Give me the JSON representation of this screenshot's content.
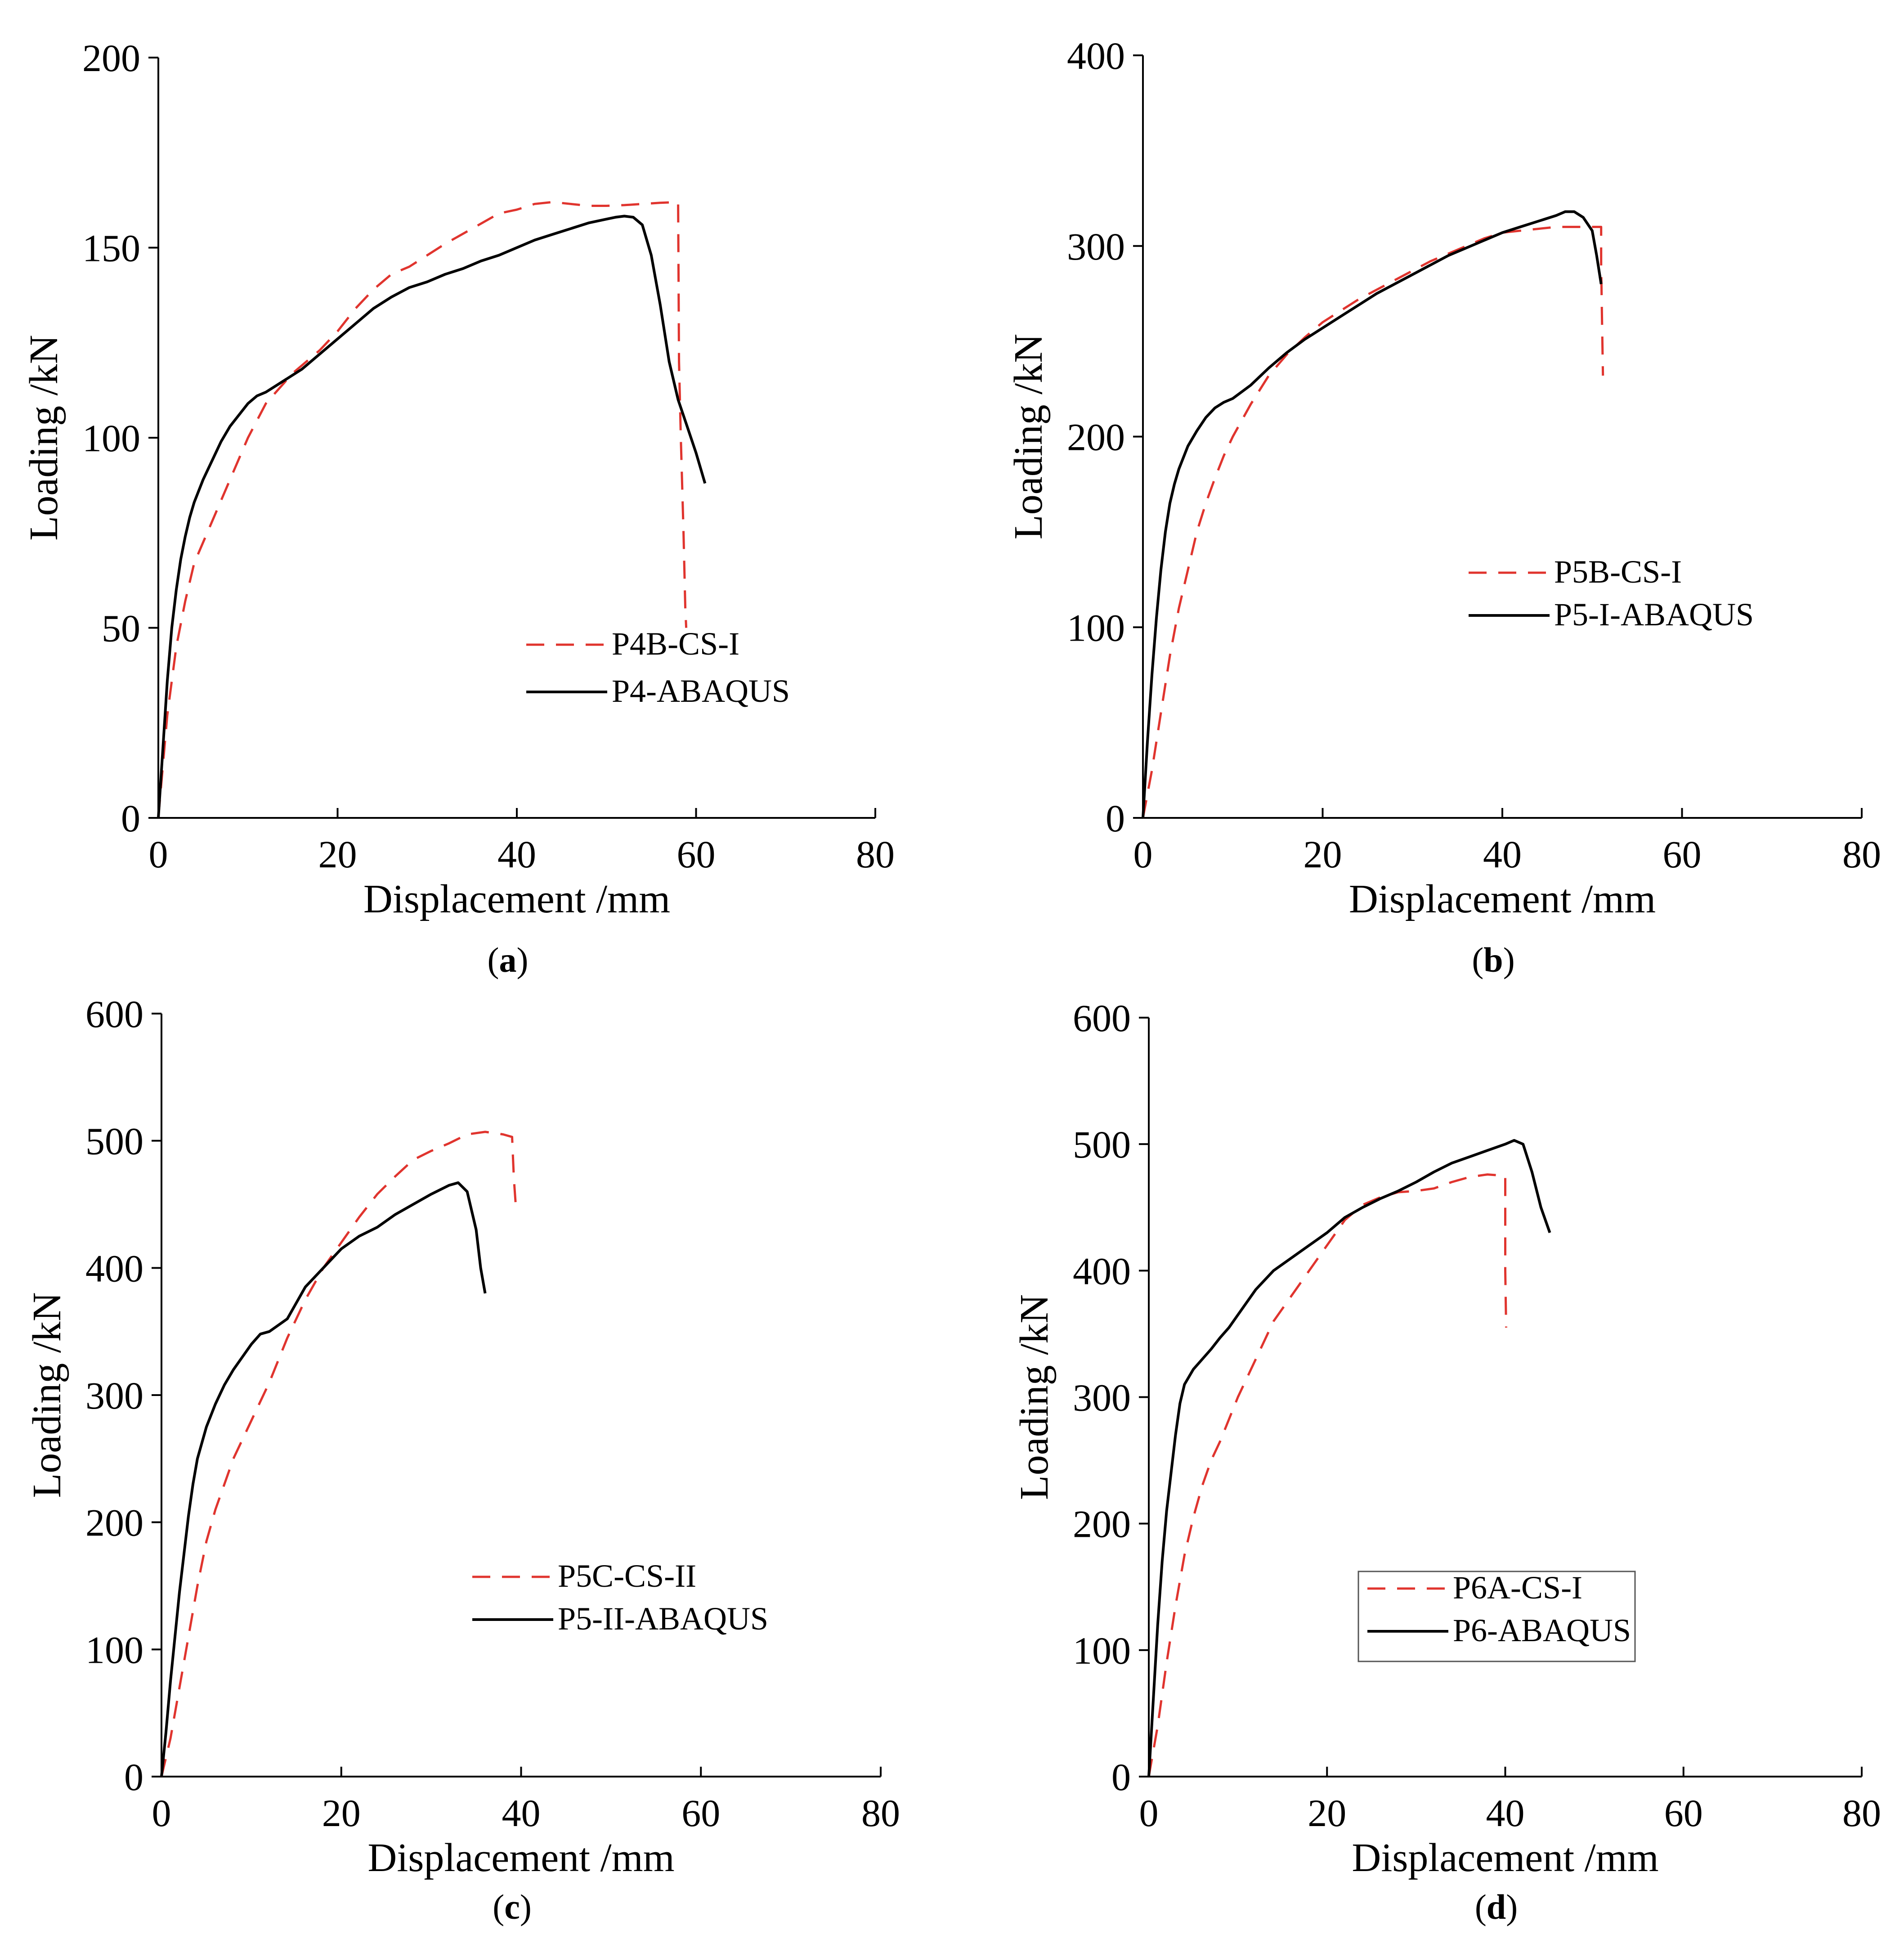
{
  "figure": {
    "colors": {
      "experiment": "#e0342e",
      "simulation": "#000000",
      "axis": "#000000"
    },
    "chart_data": [
      {
        "id": "a",
        "type": "line",
        "caption": "a",
        "xlabel": "Displacement /mm",
        "ylabel": "Loading /kN",
        "xlim": [
          0,
          80
        ],
        "ylim": [
          0,
          200
        ],
        "xticks": [
          0,
          20,
          40,
          60,
          80
        ],
        "yticks": [
          0,
          50,
          100,
          150,
          200
        ],
        "legend_position": "center-right",
        "legend_box": false,
        "series": [
          {
            "name": "P4B-CS-I",
            "style": "dashed",
            "color": "#e0342e",
            "x": [
              0,
              1,
              2,
              3,
              4,
              6,
              8,
              10,
              12,
              15,
              18,
              20,
              22,
              24,
              26,
              28,
              30,
              32,
              35,
              38,
              40,
              42,
              44,
              46,
              48,
              50,
              52,
              54,
              56,
              58,
              58,
              58.1,
              58.3,
              58.6,
              58.8,
              58.9
            ],
            "y": [
              0,
              27,
              45,
              57,
              67,
              78,
              89,
              100,
              109,
              117,
              123,
              128,
              134,
              139,
              143,
              145,
              148,
              151,
              155,
              159,
              160,
              161.5,
              162,
              161.5,
              161,
              161,
              161.2,
              161.5,
              161.8,
              162,
              162,
              120,
              100,
              75,
              55,
              50
            ]
          },
          {
            "name": "P4-ABAQUS",
            "style": "solid",
            "color": "#000000",
            "x": [
              0,
              0.5,
              1,
              1.5,
              2,
              2.5,
              3,
              3.5,
              4,
              5,
              6,
              7,
              8,
              9,
              10,
              11,
              12,
              14,
              16,
              18,
              20,
              22,
              24,
              26,
              28,
              30,
              32,
              34,
              36,
              38,
              40,
              42,
              44,
              46,
              48,
              50,
              51,
              52,
              53,
              54,
              55,
              56,
              57,
              58,
              59,
              60,
              61
            ],
            "y": [
              0,
              18,
              36,
              50,
              60,
              68,
              74,
              79,
              83,
              89,
              94,
              99,
              103,
              106,
              109,
              111,
              112,
              115,
              118,
              122,
              126,
              130,
              134,
              137,
              139.5,
              141,
              143,
              144.5,
              146.5,
              148,
              150,
              152,
              153.5,
              155,
              156.5,
              157.5,
              158,
              158.3,
              158,
              156,
              148,
              135,
              120,
              110,
              103,
              96,
              88
            ]
          }
        ]
      },
      {
        "id": "b",
        "type": "line",
        "caption": "b",
        "xlabel": "Displacement /mm",
        "ylabel": "Loading /kN",
        "xlim": [
          0,
          80
        ],
        "ylim": [
          0,
          400
        ],
        "xticks": [
          0,
          20,
          40,
          60,
          80
        ],
        "yticks": [
          0,
          100,
          200,
          300,
          400
        ],
        "legend_position": "center-right",
        "legend_box": false,
        "series": [
          {
            "name": "P5B-CS-I",
            "style": "dashed",
            "color": "#e0342e",
            "x": [
              0,
              1,
              2,
              3,
              4,
              5,
              6,
              7,
              8,
              9,
              10,
              12,
              14,
              16,
              18,
              20,
              22,
              24,
              26,
              28,
              30,
              32,
              34,
              36,
              38,
              40,
              42,
              44,
              46,
              48,
              50,
              51,
              51,
              51.1,
              51.2
            ],
            "y": [
              0,
              25,
              55,
              85,
              110,
              130,
              150,
              165,
              178,
              190,
              200,
              217,
              232,
              243,
              252,
              260,
              266,
              272,
              277,
              282,
              287,
              292,
              296,
              300,
              304,
              307,
              308,
              309,
              310,
              310,
              310,
              310,
              290,
              260,
              232
            ]
          },
          {
            "name": "P5-I-ABAQUS",
            "style": "solid",
            "color": "#000000",
            "x": [
              0,
              0.5,
              1,
              1.5,
              2,
              2.5,
              3,
              3.5,
              4,
              5,
              6,
              7,
              8,
              9,
              10,
              12,
              14,
              16,
              18,
              20,
              22,
              24,
              26,
              28,
              30,
              32,
              34,
              36,
              38,
              40,
              42,
              44,
              46,
              47,
              48,
              49,
              50,
              50.5,
              51
            ],
            "y": [
              0,
              40,
              75,
              105,
              130,
              150,
              165,
              175,
              183,
              195,
              203,
              210,
              215,
              218,
              220,
              227,
              236,
              244,
              251,
              257,
              263,
              269,
              275,
              280,
              285,
              290,
              295,
              299,
              303,
              307,
              310,
              313,
              316,
              318,
              318,
              315,
              308,
              295,
              280
            ]
          }
        ]
      },
      {
        "id": "c",
        "type": "line",
        "caption": "c",
        "xlabel": "Displacement /mm",
        "ylabel": "Loading /kN",
        "xlim": [
          0,
          80
        ],
        "ylim": [
          0,
          600
        ],
        "xticks": [
          0,
          20,
          40,
          60,
          80
        ],
        "yticks": [
          0,
          100,
          200,
          300,
          400,
          500,
          600
        ],
        "legend_position": "center-right",
        "legend_box": false,
        "series": [
          {
            "name": "P5C-CS-II",
            "style": "dashed",
            "color": "#e0342e",
            "x": [
              0,
              1,
              2,
              3,
              4,
              5,
              6,
              7,
              8,
              10,
              12,
              14,
              16,
              18,
              20,
              22,
              24,
              26,
              28,
              30,
              32,
              34,
              36,
              38,
              39,
              39.2,
              39.4
            ],
            "y": [
              0,
              30,
              70,
              110,
              150,
              185,
              210,
              230,
              250,
              280,
              310,
              345,
              375,
              400,
              420,
              440,
              458,
              472,
              485,
              492,
              498,
              505,
              507,
              505,
              503,
              470,
              450
            ]
          },
          {
            "name": "P5-II-ABAQUS",
            "style": "solid",
            "color": "#000000",
            "x": [
              0,
              0.5,
              1,
              1.5,
              2,
              2.5,
              3,
              3.5,
              4,
              5,
              6,
              7,
              8,
              9,
              10,
              11,
              12,
              14,
              16,
              18,
              20,
              22,
              24,
              26,
              28,
              30,
              32,
              33,
              34,
              35,
              35.5,
              36
            ],
            "y": [
              0,
              35,
              75,
              110,
              145,
              175,
              205,
              230,
              250,
              275,
              293,
              308,
              320,
              330,
              340,
              348,
              350,
              360,
              385,
              400,
              415,
              425,
              432,
              442,
              450,
              458,
              465,
              467,
              460,
              430,
              400,
              380
            ]
          }
        ]
      },
      {
        "id": "d",
        "type": "line",
        "caption": "d",
        "xlabel": "Displacement /mm",
        "ylabel": "Loading /kN",
        "xlim": [
          0,
          80
        ],
        "ylim": [
          0,
          600
        ],
        "xticks": [
          0,
          20,
          40,
          60,
          80
        ],
        "yticks": [
          0,
          100,
          200,
          300,
          400,
          500,
          600
        ],
        "legend_position": "center-right",
        "legend_box": true,
        "series": [
          {
            "name": "P6A-CS-I",
            "style": "dashed",
            "color": "#e0342e",
            "x": [
              0,
              1,
              2,
              3,
              4,
              5,
              6,
              7,
              8,
              10,
              12,
              14,
              16,
              18,
              20,
              22,
              24,
              26,
              28,
              30,
              32,
              34,
              36,
              38,
              40,
              40,
              40.1
            ],
            "y": [
              0,
              40,
              90,
              135,
              175,
              205,
              230,
              250,
              265,
              300,
              330,
              360,
              380,
              400,
              420,
              440,
              452,
              458,
              462,
              463,
              465,
              470,
              474,
              476,
              475,
              400,
              355
            ]
          },
          {
            "name": "P6-ABAQUS",
            "style": "solid",
            "color": "#000000",
            "x": [
              0,
              0.5,
              1,
              1.5,
              2,
              2.5,
              3,
              3.5,
              4,
              5,
              6,
              7,
              8,
              9,
              10,
              12,
              14,
              16,
              18,
              20,
              22,
              24,
              26,
              28,
              30,
              32,
              34,
              36,
              38,
              40,
              41,
              42,
              43,
              44,
              45
            ],
            "y": [
              0,
              60,
              120,
              170,
              210,
              240,
              270,
              295,
              310,
              322,
              330,
              338,
              347,
              355,
              365,
              385,
              400,
              410,
              420,
              430,
              442,
              450,
              457,
              463,
              470,
              478,
              485,
              490,
              495,
              500,
              503,
              500,
              478,
              450,
              430
            ]
          }
        ]
      }
    ]
  }
}
